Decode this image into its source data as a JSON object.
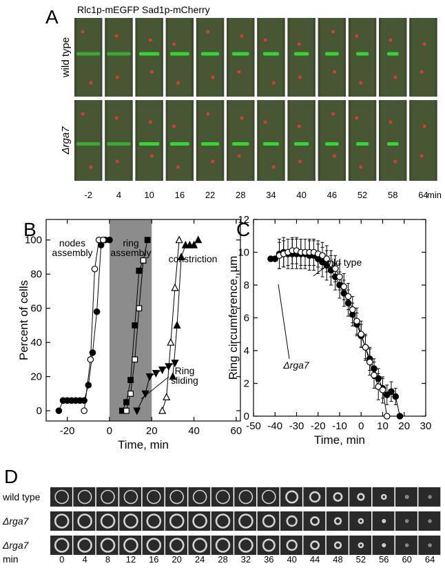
{
  "panel_a": {
    "label": "A",
    "title": "Rlc1p-mEGFP Sad1p-mCherry",
    "rows": [
      "wild type",
      "Δrga7"
    ],
    "times": [
      "-2",
      "4",
      "10",
      "16",
      "22",
      "28",
      "34",
      "40",
      "46",
      "52",
      "58",
      "64"
    ],
    "unit": "min"
  },
  "chart_data": [
    {
      "type": "line",
      "label": "B",
      "xlabel": "Time, min",
      "ylabel": "Percent of cells",
      "xlim": [
        -30,
        62
      ],
      "ylim": [
        -6,
        112
      ],
      "xticks": [
        -20,
        0,
        20,
        40,
        60
      ],
      "yticks": [
        0,
        20,
        40,
        60,
        80,
        100
      ],
      "shade": [
        0,
        20
      ],
      "shade_color": "#8c8c8c",
      "annotations": [
        "nodes",
        "assembly",
        "ring",
        "assembly",
        "constriction",
        "Ring",
        "sliding"
      ],
      "series": [
        {
          "marker": "circle",
          "filled": true,
          "color": "#000",
          "x": [
            -24,
            -22,
            -20,
            -18,
            -16,
            -14,
            -12,
            -10,
            -8,
            -6,
            -4,
            -2,
            0
          ],
          "values": [
            0,
            6,
            6,
            6,
            6,
            6,
            6,
            15,
            34,
            58,
            97,
            100,
            100
          ]
        },
        {
          "marker": "circle",
          "filled": false,
          "color": "#000",
          "x": [
            -12,
            -9,
            -7,
            -5,
            -3
          ],
          "values": [
            0,
            30,
            83,
            100,
            100
          ]
        },
        {
          "marker": "square",
          "filled": true,
          "color": "#000",
          "x": [
            6,
            8,
            10,
            12,
            14,
            16,
            18
          ],
          "values": [
            0,
            5,
            18,
            50,
            82,
            88,
            100
          ]
        },
        {
          "marker": "square",
          "filled": false,
          "color": "#000",
          "x": [
            8,
            10,
            12,
            14,
            16
          ],
          "values": [
            0,
            10,
            30,
            60,
            88
          ]
        },
        {
          "marker": "triangle-down",
          "filled": true,
          "color": "#000",
          "x": [
            13,
            17,
            19,
            22,
            25,
            28,
            31
          ],
          "values": [
            0,
            10,
            20,
            22,
            24,
            26,
            28
          ]
        },
        {
          "marker": "triangle-up",
          "filled": false,
          "color": "#000",
          "x": [
            25,
            27,
            29,
            31,
            33
          ],
          "values": [
            0,
            8,
            40,
            72,
            100
          ]
        },
        {
          "marker": "triangle-up",
          "filled": true,
          "color": "#000",
          "x": [
            30,
            32,
            34,
            36,
            38,
            40,
            42
          ],
          "values": [
            20,
            50,
            90,
            97,
            97,
            97,
            100
          ]
        }
      ]
    },
    {
      "type": "line",
      "label": "C",
      "xlabel": "Time, min",
      "ylabel": "Ring circumference, µm",
      "xlim": [
        -50,
        30
      ],
      "ylim": [
        0,
        12
      ],
      "xticks": [
        -50,
        -40,
        -30,
        -20,
        -10,
        0,
        10,
        20,
        30
      ],
      "yticks": [
        0,
        2,
        4,
        6,
        8,
        10,
        12
      ],
      "annotations": [
        "wild type",
        "Δrga7"
      ],
      "series": [
        {
          "marker": "circle",
          "filled": true,
          "color": "#000",
          "x": [
            -42,
            -40,
            -38,
            -36,
            -34,
            -32,
            -30,
            -28,
            -26,
            -24,
            -22,
            -20,
            -18,
            -16,
            -14,
            -12,
            -10,
            -8,
            -6,
            -4,
            -2,
            0,
            2,
            4,
            6,
            8,
            10,
            12,
            14,
            16,
            18
          ],
          "values": [
            9.6,
            9.6,
            9.9,
            10,
            9.9,
            9.9,
            9.9,
            9.9,
            9.9,
            9.8,
            9.8,
            9.6,
            9.4,
            9.2,
            8.9,
            8.5,
            8.0,
            7.5,
            6.9,
            6.2,
            5.6,
            4.9,
            4.2,
            3.5,
            2.9,
            2.3,
            1.7,
            1.3,
            1.5,
            1.2,
            0
          ],
          "errors": [
            0,
            0,
            0.9,
            0.9,
            0.9,
            0.9,
            0.9,
            0.9,
            0.9,
            0.9,
            0.9,
            0.9,
            0.9,
            0.9,
            0.9,
            0.8,
            0.8,
            0.8,
            0.8,
            0.7,
            0.7,
            0.7,
            0.7,
            0.7,
            0.6,
            0.6,
            0.6,
            0.6,
            0.6,
            0.5,
            0
          ]
        },
        {
          "marker": "circle",
          "filled": false,
          "color": "#000",
          "x": [
            -38,
            -36,
            -34,
            -32,
            -30,
            -28,
            -26,
            -24,
            -22,
            -20,
            -18,
            -16,
            -14,
            -12,
            -10,
            -8,
            -6,
            -4,
            -2,
            0,
            2,
            4,
            6,
            8,
            10,
            12
          ],
          "values": [
            9.8,
            9.9,
            10,
            10.1,
            10.1,
            10,
            10,
            10,
            10,
            9.9,
            9.8,
            9.6,
            9.3,
            9.0,
            8.5,
            7.9,
            7.3,
            6.5,
            5.8,
            5.0,
            4.2,
            3.3,
            2.5,
            1.8,
            1.6,
            0
          ],
          "errors": [
            0.8,
            0.8,
            0.8,
            0.8,
            0.8,
            0.8,
            0.8,
            0.8,
            0.8,
            0.8,
            0.8,
            0.8,
            0.8,
            0.8,
            0.8,
            0.8,
            0.8,
            0.8,
            0.8,
            0.8,
            0.8,
            0.8,
            0.8,
            0.8,
            0.8,
            0
          ]
        }
      ]
    }
  ],
  "panel_d": {
    "label": "D",
    "rows": [
      "wild type",
      "Δrga7",
      "Δrga7"
    ],
    "unit": "min",
    "times": [
      "0",
      "4",
      "8",
      "12",
      "16",
      "20",
      "24",
      "28",
      "32",
      "36",
      "40",
      "44",
      "48",
      "52",
      "56",
      "60",
      "64"
    ]
  }
}
